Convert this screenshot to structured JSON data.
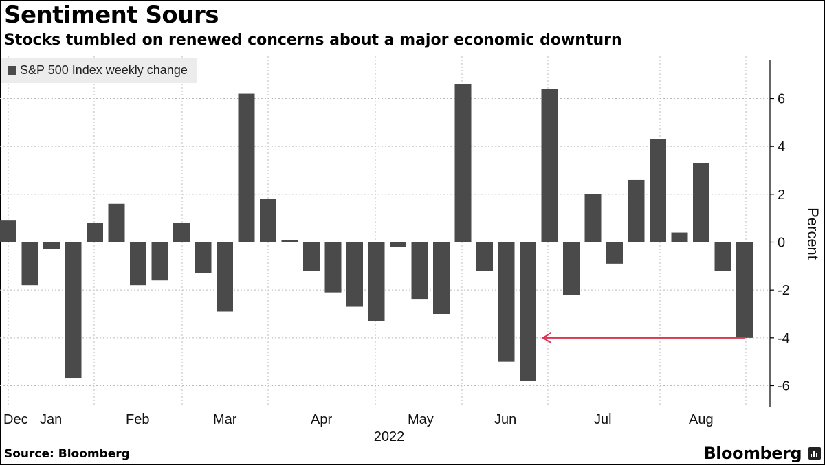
{
  "title": "Sentiment Sours",
  "subtitle": "Stocks tumbled on renewed concerns about a major economic downturn",
  "source": "Source: Bloomberg",
  "brand": "Bloomberg",
  "colors": {
    "bar": "#4a4a4a",
    "arrow": "#e0314e",
    "grid": "#bbbbbb",
    "axis": "#000000"
  },
  "chart_data": {
    "type": "bar",
    "legend": {
      "label": "S&P 500 Index weekly change",
      "position": "top-left"
    },
    "ylabel": "Percent",
    "xlabel": "2022",
    "ylim": [
      -6.5,
      7.6
    ],
    "yticks": [
      6,
      4,
      2,
      0,
      -2,
      -4,
      -6
    ],
    "grid": true,
    "month_labels": [
      "Dec",
      "Jan",
      "Feb",
      "Mar",
      "Apr",
      "May",
      "Jun",
      "Jul",
      "Aug"
    ],
    "values": [
      0.9,
      -1.8,
      -0.3,
      -5.7,
      0.8,
      1.6,
      -1.8,
      -1.6,
      0.8,
      -1.3,
      -2.9,
      6.2,
      1.8,
      0.1,
      -1.2,
      -2.1,
      -2.7,
      -3.3,
      -0.2,
      -2.4,
      -3.0,
      6.6,
      -1.2,
      -5.0,
      -5.8,
      6.4,
      -2.2,
      2.0,
      -0.9,
      2.6,
      4.3,
      0.4,
      3.3,
      -1.2,
      -4.0
    ],
    "annotation": {
      "type": "arrow",
      "value": -4.0,
      "from_bar": 34,
      "to_bar": 25
    }
  }
}
